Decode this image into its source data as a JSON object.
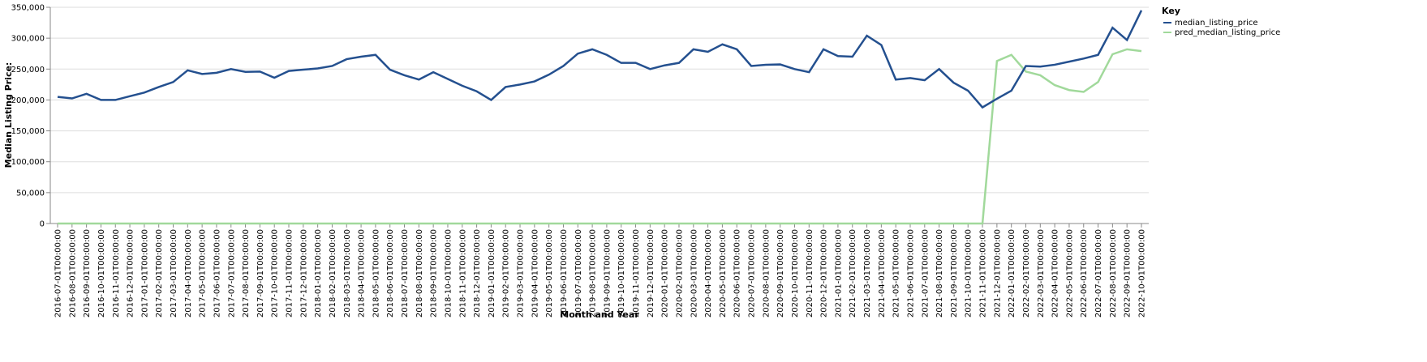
{
  "chart_data": {
    "type": "line",
    "x_label": "Month and Year",
    "y_label": "Median Listing Price:",
    "legend_title": "Key",
    "legend": "top-right-outside",
    "grid": true,
    "categories": [
      "2016-07-01T00:00:00",
      "2016-08-01T00:00:00",
      "2016-09-01T00:00:00",
      "2016-10-01T00:00:00",
      "2016-11-01T00:00:00",
      "2016-12-01T00:00:00",
      "2017-01-01T00:00:00",
      "2017-02-01T00:00:00",
      "2017-03-01T00:00:00",
      "2017-04-01T00:00:00",
      "2017-05-01T00:00:00",
      "2017-06-01T00:00:00",
      "2017-07-01T00:00:00",
      "2017-08-01T00:00:00",
      "2017-09-01T00:00:00",
      "2017-10-01T00:00:00",
      "2017-11-01T00:00:00",
      "2017-12-01T00:00:00",
      "2018-01-01T00:00:00",
      "2018-02-01T00:00:00",
      "2018-03-01T00:00:00",
      "2018-04-01T00:00:00",
      "2018-05-01T00:00:00",
      "2018-06-01T00:00:00",
      "2018-07-01T00:00:00",
      "2018-08-01T00:00:00",
      "2018-09-01T00:00:00",
      "2018-10-01T00:00:00",
      "2018-11-01T00:00:00",
      "2018-12-01T00:00:00",
      "2019-01-01T00:00:00",
      "2019-02-01T00:00:00",
      "2019-03-01T00:00:00",
      "2019-04-01T00:00:00",
      "2019-05-01T00:00:00",
      "2019-06-01T00:00:00",
      "2019-07-01T00:00:00",
      "2019-08-01T00:00:00",
      "2019-09-01T00:00:00",
      "2019-10-01T00:00:00",
      "2019-11-01T00:00:00",
      "2019-12-01T00:00:00",
      "2020-01-01T00:00:00",
      "2020-02-01T00:00:00",
      "2020-03-01T00:00:00",
      "2020-04-01T00:00:00",
      "2020-05-01T00:00:00",
      "2020-06-01T00:00:00",
      "2020-07-01T00:00:00",
      "2020-08-01T00:00:00",
      "2020-09-01T00:00:00",
      "2020-10-01T00:00:00",
      "2020-11-01T00:00:00",
      "2020-12-01T00:00:00",
      "2021-01-01T00:00:00",
      "2021-02-01T00:00:00",
      "2021-03-01T00:00:00",
      "2021-04-01T00:00:00",
      "2021-05-01T00:00:00",
      "2021-06-01T00:00:00",
      "2021-07-01T00:00:00",
      "2021-08-01T00:00:00",
      "2021-09-01T00:00:00",
      "2021-10-01T00:00:00",
      "2021-11-01T00:00:00",
      "2021-12-01T00:00:00",
      "2022-01-01T00:00:00",
      "2022-02-01T00:00:00",
      "2022-03-01T00:00:00",
      "2022-04-01T00:00:00",
      "2022-05-01T00:00:00",
      "2022-06-01T00:00:00",
      "2022-07-01T00:00:00",
      "2022-08-01T00:00:00",
      "2022-09-01T00:00:00",
      "2022-10-01T00:00:00"
    ],
    "series": [
      {
        "name": "median_listing_price",
        "color": "#24508f",
        "values": [
          205000,
          202500,
          210000,
          200000,
          200000,
          206000,
          212000,
          221000,
          229000,
          248000,
          242000,
          244000,
          250000,
          245500,
          246000,
          236000,
          247000,
          249000,
          251000,
          255000,
          266000,
          270000,
          273000,
          249000,
          240000,
          233000,
          245000,
          234000,
          223000,
          214000,
          200000,
          221000,
          225000,
          230000,
          241000,
          255000,
          275000,
          282000,
          273000,
          260000,
          260000,
          250000,
          256000,
          260000,
          282000,
          278000,
          290000,
          282000,
          255000,
          257000,
          257500,
          250000,
          245000,
          282000,
          271000,
          270000,
          304000,
          289000,
          233000,
          235500,
          232000,
          250000,
          228000,
          215000,
          188000,
          202000,
          215000,
          255000,
          254000,
          257000,
          262000,
          267000,
          273000,
          317000,
          297000,
          345000
        ]
      },
      {
        "name": "pred_median_listing_price",
        "color": "#a1d99b",
        "values": [
          0,
          0,
          0,
          0,
          0,
          0,
          0,
          0,
          0,
          0,
          0,
          0,
          0,
          0,
          0,
          0,
          0,
          0,
          0,
          0,
          0,
          0,
          0,
          0,
          0,
          0,
          0,
          0,
          0,
          0,
          0,
          0,
          0,
          0,
          0,
          0,
          0,
          0,
          0,
          0,
          0,
          0,
          0,
          0,
          0,
          0,
          0,
          0,
          0,
          0,
          0,
          0,
          0,
          0,
          0,
          0,
          0,
          0,
          0,
          0,
          0,
          0,
          0,
          0,
          0,
          263000,
          273000,
          246000,
          240000,
          224000,
          216000,
          213000,
          229000,
          274000,
          282000,
          279000
        ]
      }
    ],
    "ylim": [
      0,
      350000
    ],
    "yticks": [
      {
        "value": 0,
        "label": "0"
      },
      {
        "value": 50000,
        "label": "50,000"
      },
      {
        "value": 100000,
        "label": "100,000"
      },
      {
        "value": 150000,
        "label": "150,000"
      },
      {
        "value": 200000,
        "label": "200,000"
      },
      {
        "value": 250000,
        "label": "250,000"
      },
      {
        "value": 300000,
        "label": "300,000"
      },
      {
        "value": 350000,
        "label": "350,000"
      }
    ]
  }
}
